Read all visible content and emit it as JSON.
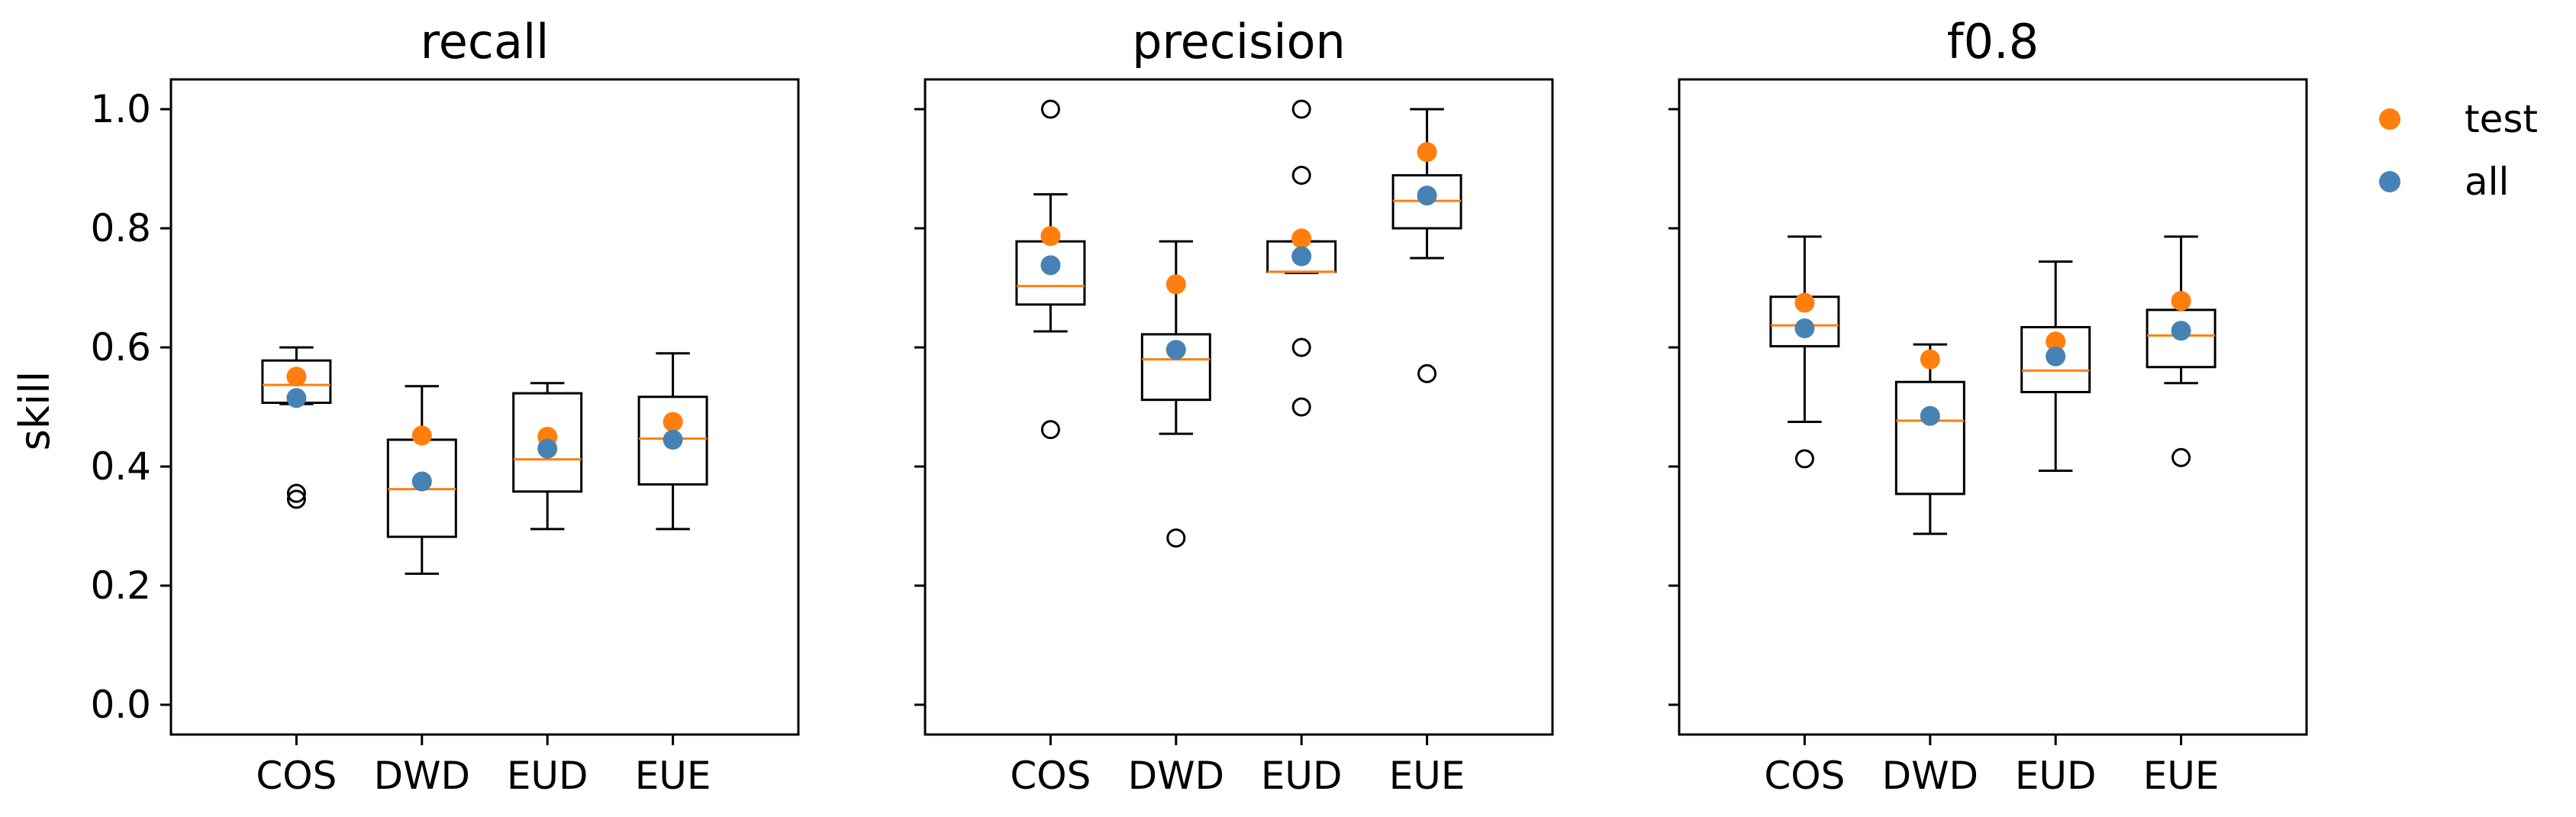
{
  "chart_data": {
    "type": "box",
    "ylabel": "skill",
    "ylim": [
      -0.05,
      1.05
    ],
    "yticks": [
      0.0,
      0.2,
      0.4,
      0.6,
      0.8,
      1.0
    ],
    "ytick_labels": [
      "0.0",
      "0.2",
      "0.4",
      "0.6",
      "0.8",
      "1.0"
    ],
    "categories": [
      "COS",
      "DWD",
      "EUD",
      "EUE"
    ],
    "grid": false,
    "legend_position": "right, outside top",
    "legend": [
      {
        "name": "test",
        "color": "#ff7f0e"
      },
      {
        "name": "all",
        "color": "#4682b4"
      }
    ],
    "colors": {
      "median": "#ff7f0e",
      "test": "#ff7f0e",
      "all": "#4682b4",
      "box": "#000000"
    },
    "panels": [
      {
        "title": "recall",
        "boxes": [
          {
            "category": "COS",
            "whisker_low": 0.505,
            "q1": 0.507,
            "median": 0.537,
            "q3": 0.578,
            "whisker_high": 0.6,
            "outliers": [
              0.345,
              0.355
            ],
            "test": 0.551,
            "all": 0.515
          },
          {
            "category": "DWD",
            "whisker_low": 0.22,
            "q1": 0.282,
            "median": 0.362,
            "q3": 0.445,
            "whisker_high": 0.535,
            "outliers": [],
            "test": 0.452,
            "all": 0.375
          },
          {
            "category": "EUD",
            "whisker_low": 0.295,
            "q1": 0.358,
            "median": 0.412,
            "q3": 0.523,
            "whisker_high": 0.54,
            "outliers": [],
            "test": 0.45,
            "all": 0.43
          },
          {
            "category": "EUE",
            "whisker_low": 0.295,
            "q1": 0.37,
            "median": 0.447,
            "q3": 0.517,
            "whisker_high": 0.59,
            "outliers": [],
            "test": 0.475,
            "all": 0.445
          }
        ]
      },
      {
        "title": "precision",
        "boxes": [
          {
            "category": "COS",
            "whisker_low": 0.627,
            "q1": 0.672,
            "median": 0.703,
            "q3": 0.778,
            "whisker_high": 0.857,
            "outliers": [
              0.462,
              1.0
            ],
            "test": 0.787,
            "all": 0.738
          },
          {
            "category": "DWD",
            "whisker_low": 0.455,
            "q1": 0.512,
            "median": 0.58,
            "q3": 0.622,
            "whisker_high": 0.778,
            "outliers": [
              0.28
            ],
            "test": 0.706,
            "all": 0.596
          },
          {
            "category": "EUD",
            "whisker_low": 0.725,
            "q1": 0.727,
            "median": 0.727,
            "q3": 0.778,
            "whisker_high": 0.778,
            "outliers": [
              0.5,
              0.6,
              0.889,
              1.0
            ],
            "test": 0.783,
            "all": 0.753
          },
          {
            "category": "EUE",
            "whisker_low": 0.75,
            "q1": 0.8,
            "median": 0.846,
            "q3": 0.889,
            "whisker_high": 1.0,
            "outliers": [
              0.556
            ],
            "test": 0.928,
            "all": 0.855
          }
        ]
      },
      {
        "title": "f0.8",
        "boxes": [
          {
            "category": "COS",
            "whisker_low": 0.475,
            "q1": 0.602,
            "median": 0.637,
            "q3": 0.685,
            "whisker_high": 0.786,
            "outliers": [
              0.413
            ],
            "test": 0.675,
            "all": 0.632
          },
          {
            "category": "DWD",
            "whisker_low": 0.287,
            "q1": 0.354,
            "median": 0.477,
            "q3": 0.542,
            "whisker_high": 0.605,
            "outliers": [],
            "test": 0.58,
            "all": 0.485
          },
          {
            "category": "EUD",
            "whisker_low": 0.393,
            "q1": 0.525,
            "median": 0.561,
            "q3": 0.634,
            "whisker_high": 0.744,
            "outliers": [],
            "test": 0.61,
            "all": 0.585
          },
          {
            "category": "EUE",
            "whisker_low": 0.54,
            "q1": 0.567,
            "median": 0.62,
            "q3": 0.663,
            "whisker_high": 0.786,
            "outliers": [
              0.415
            ],
            "test": 0.678,
            "all": 0.628
          }
        ]
      }
    ]
  }
}
